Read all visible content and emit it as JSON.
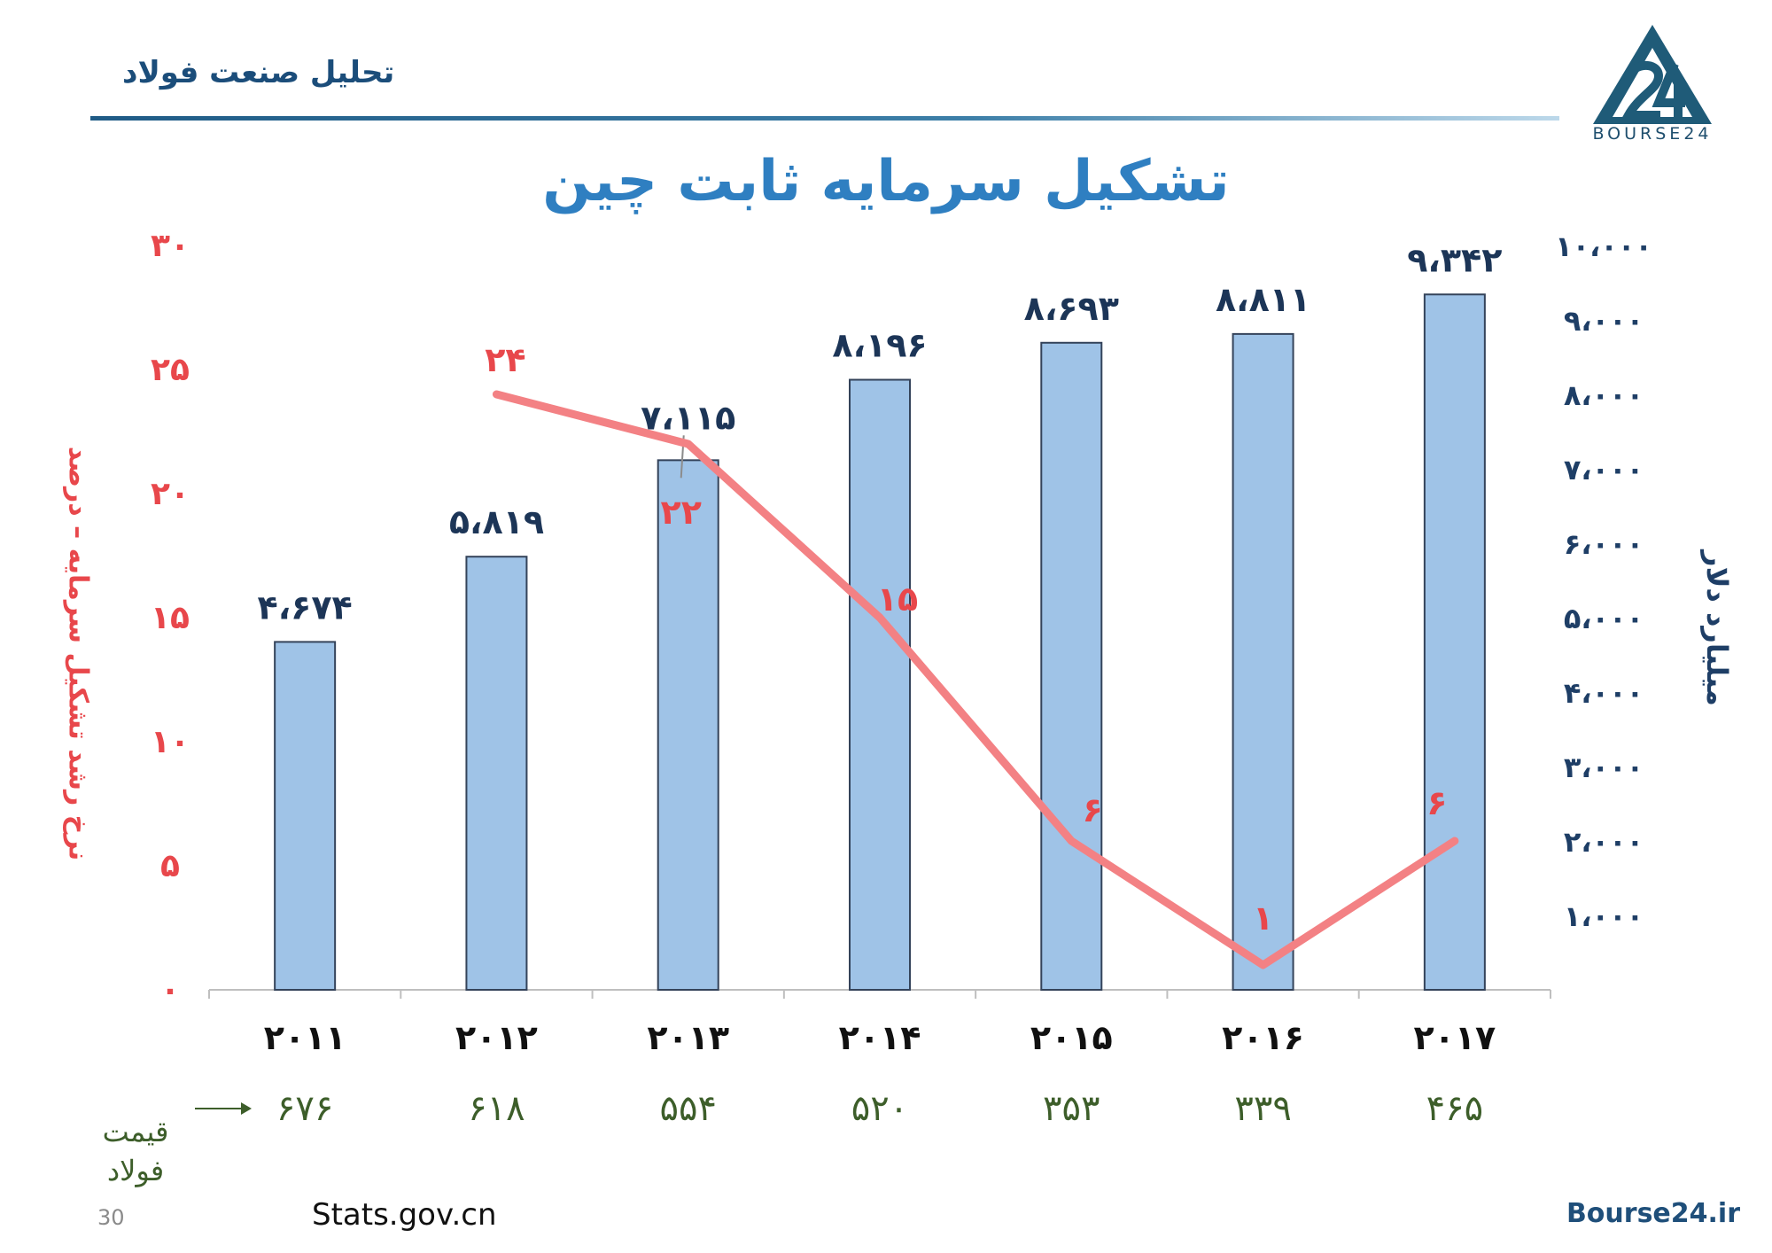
{
  "header": {
    "title": "تحلیل صنعت فولاد"
  },
  "logo": {
    "text": "BOURSE24"
  },
  "colors": {
    "bar_fill": "#9fc3e7",
    "bar_stroke": "#34435a",
    "line": "#f38184",
    "left_axis": "#e8474b",
    "right_axis": "#1e3e66",
    "price": "#3d5e2a",
    "title": "#2f7fc1"
  },
  "chart_data": {
    "type": "bar",
    "title": "تشکیل سرمایه ثابت چین",
    "categories": [
      "2011",
      "2012",
      "2013",
      "2014",
      "2015",
      "2016",
      "2017"
    ],
    "category_labels": [
      "۲۰۱۱",
      "۲۰۱۲",
      "۲۰۱۳",
      "۲۰۱۴",
      "۲۰۱۵",
      "۲۰۱۶",
      "۲۰۱۷"
    ],
    "series": [
      {
        "type": "bar",
        "axis": "right",
        "values": [
          4674,
          5819,
          7115,
          8196,
          8693,
          8811,
          9342
        ],
        "labels": [
          "۴،۶۷۴",
          "۵،۸۱۹",
          "۷،۱۱۵",
          "۸،۱۹۶",
          "۸،۶۹۳",
          "۸،۸۱۱",
          "۹،۳۴۲"
        ]
      },
      {
        "type": "line",
        "axis": "left",
        "values": [
          null,
          24,
          22,
          15,
          6,
          1,
          6
        ],
        "labels": [
          "",
          "۲۴",
          "۲۲",
          "۱۵",
          "۶",
          "۱",
          "۶"
        ]
      }
    ],
    "y_left": {
      "label": "نرخ رشد تشکیل سرمایه – درصد",
      "range": [
        0,
        30
      ],
      "ticks": [
        0,
        5,
        10,
        15,
        20,
        25,
        30
      ],
      "tick_labels": [
        "۰",
        "۵",
        "۱۰",
        "۱۵",
        "۲۰",
        "۲۵",
        "۳۰"
      ]
    },
    "y_right": {
      "label": "میلیارد دلار",
      "range": [
        0,
        10000
      ],
      "ticks": [
        1000,
        2000,
        3000,
        4000,
        5000,
        6000,
        7000,
        8000,
        9000,
        10000
      ],
      "tick_labels": [
        "۱،۰۰۰",
        "۲،۰۰۰",
        "۳،۰۰۰",
        "۴،۰۰۰",
        "۵،۰۰۰",
        "۶،۰۰۰",
        "۷،۰۰۰",
        "۸،۰۰۰",
        "۹،۰۰۰",
        "۱۰،۰۰۰"
      ]
    },
    "steel_price": {
      "label": "قیمت فولاد",
      "values": [
        676,
        618,
        554,
        520,
        353,
        339,
        465
      ],
      "labels": [
        "۶۷۶",
        "۶۱۸",
        "۵۵۴",
        "۵۲۰",
        "۳۵۳",
        "۳۳۹",
        "۴۶۵"
      ]
    },
    "grid": false
  },
  "footer": {
    "page_number": "30",
    "source_left": "Stats.gov.cn",
    "source_right": "Bourse24.ir"
  }
}
